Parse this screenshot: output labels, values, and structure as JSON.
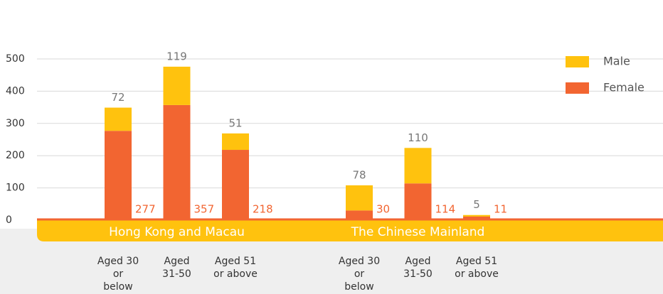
{
  "chart_data": {
    "type": "stacked_bar",
    "groups": [
      "Hong Kong and Macau",
      "The Chinese Mainland"
    ],
    "categories": [
      [
        "Aged 30",
        "or",
        "below"
      ],
      [
        "Aged",
        "31-50"
      ],
      [
        "Aged 51",
        "or above"
      ],
      [
        "Aged 30",
        "or",
        "below"
      ],
      [
        "Aged",
        "31-50"
      ],
      [
        "Aged 51",
        "or above"
      ]
    ],
    "series": [
      {
        "name": "Female",
        "color": "#f26531",
        "values": [
          277,
          357,
          218,
          30,
          114,
          11
        ]
      },
      {
        "name": "Male",
        "color": "#ffc20e",
        "values": [
          72,
          119,
          51,
          78,
          110,
          5
        ]
      }
    ],
    "ylim": [
      0,
      500
    ],
    "yticks": [
      0,
      100,
      200,
      300,
      400,
      500
    ],
    "grid": true
  }
}
